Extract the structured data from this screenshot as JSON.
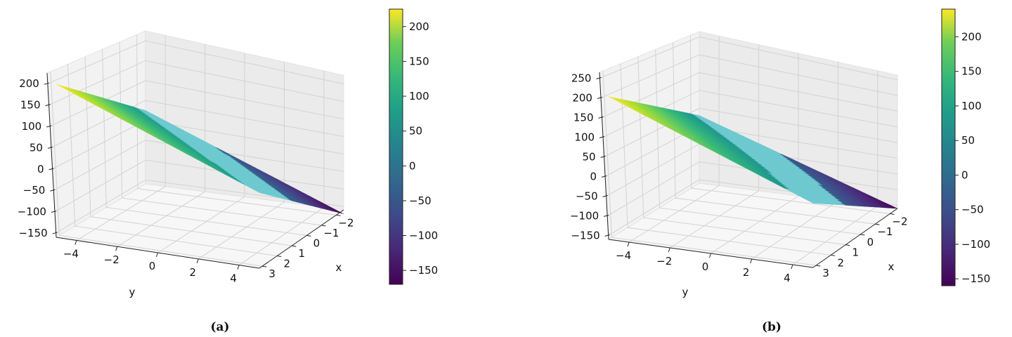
{
  "figure": {
    "panels": [
      {
        "caption": "(a)"
      },
      {
        "caption": "(b)"
      }
    ]
  },
  "chart_data": [
    {
      "type": "surface3d",
      "caption": "(a)",
      "title": "",
      "xlabel": "x",
      "ylabel": "y",
      "zlabel": "",
      "x_ticks": [
        -2,
        -1,
        0,
        1,
        2,
        3
      ],
      "y_ticks": [
        -4,
        -2,
        0,
        2,
        4
      ],
      "z_ticks": [
        -150,
        -100,
        -50,
        0,
        50,
        100,
        150,
        200
      ],
      "xlim": [
        -2.5,
        3.2
      ],
      "ylim": [
        -5,
        5
      ],
      "zlim": [
        -160,
        225
      ],
      "colormap": "viridis",
      "colorbar_ticks": [
        -150,
        -100,
        -50,
        0,
        50,
        100,
        150,
        200
      ],
      "colorbar_range": [
        -170,
        225
      ],
      "surface_corners": [
        {
          "x": -2.5,
          "y": -5,
          "z": 225
        },
        {
          "x": 3.2,
          "y": 5,
          "z": -170
        },
        {
          "x": -2.5,
          "y": 5,
          "z": 25
        },
        {
          "x": 3.2,
          "y": -5,
          "z": 30
        }
      ],
      "grid": true
    },
    {
      "type": "surface3d",
      "caption": "(b)",
      "title": "",
      "xlabel": "x",
      "ylabel": "y",
      "zlabel": "",
      "x_ticks": [
        -2,
        -1,
        0,
        1,
        2,
        3
      ],
      "y_ticks": [
        -4,
        -2,
        0,
        2,
        4
      ],
      "z_ticks": [
        -150,
        -100,
        -50,
        0,
        50,
        100,
        150,
        200,
        250
      ],
      "xlim": [
        -2.5,
        3.2
      ],
      "ylim": [
        -5,
        5
      ],
      "zlim": [
        -160,
        265
      ],
      "colormap": "viridis",
      "colorbar_ticks": [
        -150,
        -100,
        -50,
        0,
        50,
        100,
        150,
        200
      ],
      "colorbar_range": [
        -160,
        240
      ],
      "surface_corners": [
        {
          "x": -2.5,
          "y": -5,
          "z": 240
        },
        {
          "x": 3.2,
          "y": 5,
          "z": -160
        },
        {
          "x": -2.5,
          "y": 5,
          "z": 30
        },
        {
          "x": 3.2,
          "y": -5,
          "z": 20
        }
      ],
      "grid": true
    }
  ]
}
